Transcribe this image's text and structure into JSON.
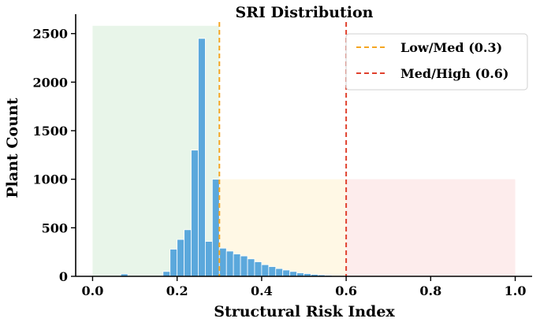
{
  "chart_data": {
    "type": "bar",
    "title": "SRI Distribution",
    "xlabel": "Structural Risk Index",
    "ylabel": "Plant Count",
    "xlim": [
      -0.04,
      1.04
    ],
    "ylim": [
      0,
      2700
    ],
    "xticks": [
      0.0,
      0.2,
      0.4,
      0.6,
      0.8,
      1.0
    ],
    "xtick_labels": [
      "0.0",
      "0.2",
      "0.4",
      "0.6",
      "0.8",
      "1.0"
    ],
    "yticks": [
      0,
      500,
      1000,
      1500,
      2000,
      2500
    ],
    "ytick_labels": [
      "0",
      "500",
      "1000",
      "1500",
      "2000",
      "2500"
    ],
    "bin_width": 0.0167,
    "bars": [
      {
        "x0": 0.0667,
        "value": 25
      },
      {
        "x0": 0.1667,
        "value": 50
      },
      {
        "x0": 0.1833,
        "value": 280
      },
      {
        "x0": 0.2,
        "value": 380
      },
      {
        "x0": 0.2167,
        "value": 480
      },
      {
        "x0": 0.2333,
        "value": 1300
      },
      {
        "x0": 0.25,
        "value": 2450
      },
      {
        "x0": 0.2667,
        "value": 360
      },
      {
        "x0": 0.2833,
        "value": 1000
      },
      {
        "x0": 0.3,
        "value": 290
      },
      {
        "x0": 0.3167,
        "value": 260
      },
      {
        "x0": 0.3333,
        "value": 230
      },
      {
        "x0": 0.35,
        "value": 210
      },
      {
        "x0": 0.3667,
        "value": 180
      },
      {
        "x0": 0.3833,
        "value": 150
      },
      {
        "x0": 0.4,
        "value": 120
      },
      {
        "x0": 0.4167,
        "value": 100
      },
      {
        "x0": 0.4333,
        "value": 80
      },
      {
        "x0": 0.45,
        "value": 65
      },
      {
        "x0": 0.4667,
        "value": 50
      },
      {
        "x0": 0.4833,
        "value": 35
      },
      {
        "x0": 0.5,
        "value": 28
      },
      {
        "x0": 0.5167,
        "value": 20
      },
      {
        "x0": 0.5333,
        "value": 15
      },
      {
        "x0": 0.55,
        "value": 10
      },
      {
        "x0": 0.5667,
        "value": 6
      },
      {
        "x0": 0.5833,
        "value": 4
      }
    ],
    "bar_color": "#5ba8dc",
    "regions": [
      {
        "x0": 0.0,
        "x1": 0.3,
        "y1": 2580,
        "color": "#e8f5e9"
      },
      {
        "x0": 0.3,
        "x1": 0.6,
        "y1": 1000,
        "color": "#fff8e5"
      },
      {
        "x0": 0.6,
        "x1": 1.0,
        "y1": 1000,
        "color": "#fdecec"
      }
    ],
    "threshold_lines": [
      {
        "x": 0.3,
        "color": "#f5a623",
        "label": "Low/Med (0.3)"
      },
      {
        "x": 0.6,
        "color": "#e0412e",
        "label": "Med/High (0.6)"
      }
    ],
    "legend_position": "top-right",
    "grid": false
  }
}
